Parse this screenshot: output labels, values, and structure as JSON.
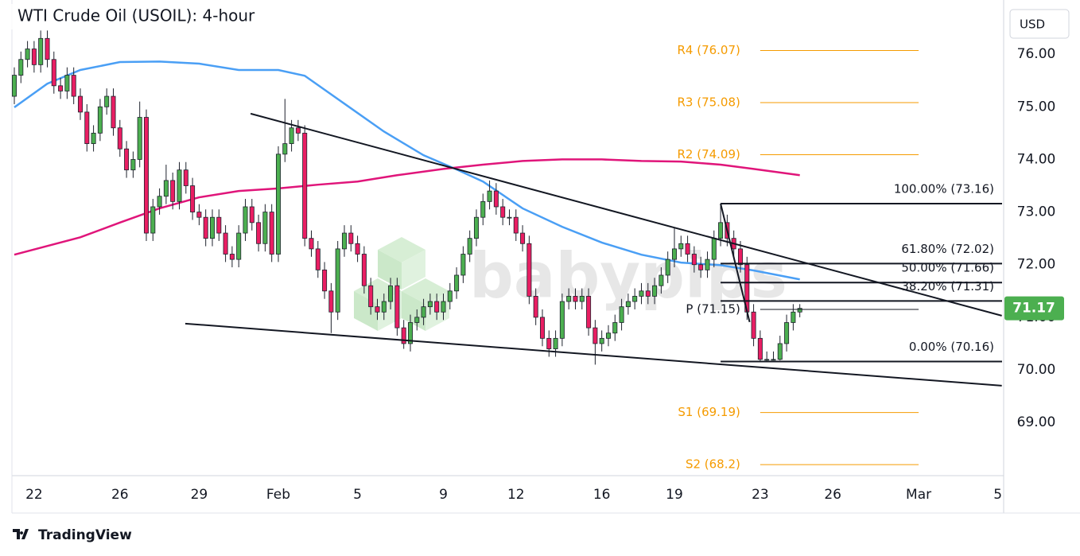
{
  "chart_data": {
    "type": "candlestick",
    "title": "WTI Crude Oil (USOIL): 4-hour",
    "currency": "USD",
    "watermark": "babypips",
    "footer": "TradingView",
    "xlim": [
      -0.36,
      149.64
    ],
    "ylim": [
      67.99,
      77.03
    ],
    "yticks": [
      {
        "value": 69,
        "label": "69.00"
      },
      {
        "value": 70,
        "label": "70.00"
      },
      {
        "value": 71,
        "label": "71.00"
      },
      {
        "value": 72,
        "label": "72.00"
      },
      {
        "value": 73,
        "label": "73.00"
      },
      {
        "value": 74,
        "label": "74.00"
      },
      {
        "value": 75,
        "label": "75.00"
      },
      {
        "value": 76,
        "label": "76.00"
      }
    ],
    "xticks": [
      {
        "value": 3,
        "label": "22"
      },
      {
        "value": 16,
        "label": "26"
      },
      {
        "value": 28,
        "label": "29"
      },
      {
        "value": 40,
        "label": "Feb"
      },
      {
        "value": 52,
        "label": "5"
      },
      {
        "value": 65,
        "label": "9"
      },
      {
        "value": 76,
        "label": "12"
      },
      {
        "value": 89,
        "label": "16"
      },
      {
        "value": 100,
        "label": "19"
      },
      {
        "value": 113,
        "label": "23"
      },
      {
        "value": 124,
        "label": "26"
      },
      {
        "value": 137,
        "label": "Mar"
      },
      {
        "value": 149,
        "label": "5"
      }
    ],
    "up_color": "#4caf50",
    "down_color": "#e91e63",
    "x": [
      0,
      1,
      2,
      3,
      4,
      5,
      6,
      7,
      8,
      9,
      10,
      11,
      12,
      13,
      14,
      15,
      16,
      17,
      18,
      19,
      20,
      21,
      22,
      23,
      24,
      25,
      26,
      27,
      28,
      29,
      30,
      31,
      32,
      33,
      34,
      35,
      36,
      37,
      38,
      39,
      40,
      41,
      42,
      43,
      44,
      45,
      46,
      47,
      48,
      49,
      50,
      51,
      52,
      53,
      54,
      55,
      56,
      57,
      58,
      59,
      60,
      61,
      62,
      63,
      64,
      65,
      66,
      67,
      68,
      69,
      70,
      71,
      72,
      73,
      74,
      75,
      76,
      77,
      78,
      79,
      80,
      81,
      82,
      83,
      84,
      85,
      86,
      87,
      88,
      89,
      90,
      91,
      92,
      93,
      94,
      95,
      96,
      97,
      98,
      99,
      100,
      101,
      102,
      103,
      104,
      105,
      106,
      107,
      108,
      109,
      110,
      111,
      112,
      113,
      114,
      115,
      116,
      117,
      118,
      119
    ],
    "open": [
      75.2,
      75.6,
      75.9,
      76.1,
      75.8,
      76.3,
      75.9,
      75.4,
      75.3,
      75.6,
      75.2,
      74.9,
      74.3,
      74.5,
      75.0,
      75.2,
      74.6,
      74.2,
      73.8,
      74.0,
      74.8,
      72.6,
      73.1,
      73.3,
      73.6,
      73.2,
      73.8,
      73.5,
      73.0,
      72.9,
      72.5,
      72.9,
      72.6,
      72.2,
      72.1,
      72.6,
      73.1,
      72.8,
      72.4,
      73.0,
      72.2,
      74.1,
      74.3,
      74.6,
      74.5,
      72.5,
      72.3,
      71.9,
      71.5,
      71.1,
      72.3,
      72.6,
      72.4,
      72.2,
      71.6,
      71.2,
      71.1,
      71.3,
      71.6,
      70.8,
      70.5,
      70.9,
      71.0,
      71.2,
      71.3,
      71.1,
      71.3,
      71.5,
      71.8,
      72.2,
      72.5,
      72.9,
      73.2,
      73.4,
      73.1,
      72.9,
      72.9,
      72.6,
      72.4,
      71.4,
      71.0,
      70.6,
      70.4,
      70.6,
      71.3,
      71.4,
      71.3,
      71.4,
      70.8,
      70.5,
      70.6,
      70.7,
      70.9,
      71.2,
      71.3,
      71.4,
      71.5,
      71.4,
      71.6,
      71.8,
      72.1,
      72.3,
      72.4,
      72.2,
      72.0,
      71.9,
      72.1,
      72.5,
      72.8,
      72.5,
      72.3,
      72.0,
      71.1,
      70.6,
      70.2,
      70.2,
      70.2,
      70.5,
      70.9,
      71.1
    ],
    "high": [
      75.75,
      76.05,
      76.25,
      76.25,
      76.45,
      76.45,
      76.05,
      75.55,
      75.75,
      75.75,
      75.35,
      75.05,
      74.65,
      75.15,
      75.35,
      75.35,
      74.75,
      74.35,
      74.15,
      75.1,
      74.95,
      73.25,
      73.45,
      73.9,
      73.75,
      73.95,
      73.95,
      73.65,
      73.15,
      73.05,
      73.05,
      73.05,
      72.75,
      72.35,
      72.75,
      73.25,
      73.25,
      72.95,
      73.15,
      73.15,
      74.25,
      75.15,
      74.75,
      74.75,
      74.65,
      72.65,
      72.45,
      72.05,
      71.65,
      72.45,
      72.75,
      72.75,
      72.55,
      72.35,
      71.75,
      71.35,
      71.45,
      71.75,
      71.75,
      70.95,
      71.05,
      71.15,
      71.35,
      71.45,
      71.45,
      71.45,
      71.65,
      71.95,
      72.35,
      72.65,
      73.05,
      73.35,
      73.6,
      73.55,
      73.25,
      73.05,
      73.05,
      72.75,
      72.55,
      71.55,
      71.15,
      70.75,
      70.75,
      71.45,
      71.55,
      71.55,
      71.55,
      71.55,
      70.95,
      70.75,
      70.85,
      71.05,
      71.35,
      71.45,
      71.55,
      71.65,
      71.65,
      71.75,
      71.95,
      72.25,
      72.7,
      72.55,
      72.55,
      72.35,
      72.15,
      72.25,
      72.65,
      73.16,
      72.95,
      72.65,
      72.45,
      72.15,
      71.25,
      70.75,
      70.35,
      70.35,
      70.65,
      71.05,
      71.25,
      71.25
    ],
    "low": [
      75.05,
      75.45,
      75.75,
      75.65,
      75.65,
      75.75,
      75.25,
      75.15,
      75.15,
      75.05,
      74.75,
      74.15,
      74.15,
      74.35,
      74.85,
      74.45,
      74.05,
      73.65,
      73.65,
      73.85,
      72.45,
      72.45,
      72.95,
      73.15,
      73.05,
      73.05,
      73.35,
      72.85,
      72.75,
      72.35,
      72.35,
      72.45,
      72.05,
      71.95,
      71.95,
      72.45,
      72.65,
      72.25,
      72.25,
      72.05,
      72.05,
      73.95,
      74.15,
      74.35,
      72.35,
      72.15,
      71.75,
      71.35,
      70.7,
      70.95,
      72.15,
      72.25,
      72.05,
      71.45,
      71.05,
      70.95,
      70.95,
      71.15,
      70.65,
      70.4,
      70.35,
      70.75,
      70.85,
      71.05,
      70.95,
      70.95,
      71.15,
      71.35,
      71.65,
      72.05,
      72.35,
      72.75,
      73.05,
      72.95,
      72.75,
      72.75,
      72.45,
      72.25,
      71.25,
      70.85,
      70.45,
      70.25,
      70.25,
      70.45,
      71.15,
      71.15,
      71.15,
      70.65,
      70.1,
      70.35,
      70.45,
      70.55,
      70.75,
      71.05,
      71.15,
      71.25,
      71.25,
      71.25,
      71.45,
      71.65,
      71.95,
      72.15,
      72.05,
      71.85,
      71.75,
      71.75,
      71.95,
      72.35,
      72.35,
      72.15,
      71.85,
      70.95,
      70.45,
      70.16,
      70.17,
      70.18,
      70.18,
      70.35,
      70.75,
      71.0
    ],
    "close": [
      75.6,
      75.9,
      76.1,
      75.8,
      76.3,
      75.9,
      75.4,
      75.3,
      75.6,
      75.2,
      74.9,
      74.3,
      74.5,
      75.0,
      75.2,
      74.6,
      74.2,
      73.8,
      74.0,
      74.8,
      72.6,
      73.1,
      73.3,
      73.6,
      73.2,
      73.8,
      73.5,
      73.0,
      72.9,
      72.5,
      72.9,
      72.6,
      72.2,
      72.1,
      72.6,
      73.1,
      72.8,
      72.4,
      73.0,
      72.2,
      74.1,
      74.3,
      74.6,
      74.5,
      72.5,
      72.3,
      71.9,
      71.5,
      71.1,
      72.3,
      72.6,
      72.4,
      72.2,
      71.6,
      71.2,
      71.1,
      71.3,
      71.6,
      70.8,
      70.5,
      70.9,
      71.0,
      71.2,
      71.3,
      71.1,
      71.3,
      71.5,
      71.8,
      72.2,
      72.5,
      72.9,
      73.2,
      73.4,
      73.1,
      72.9,
      72.9,
      72.6,
      72.4,
      71.4,
      71.0,
      70.6,
      70.4,
      70.6,
      71.3,
      71.4,
      71.3,
      71.4,
      70.8,
      70.5,
      70.6,
      70.7,
      70.9,
      71.2,
      71.3,
      71.4,
      71.5,
      71.4,
      71.6,
      71.8,
      72.1,
      72.3,
      72.4,
      72.2,
      72.0,
      71.9,
      72.1,
      72.5,
      72.8,
      72.5,
      72.3,
      72.0,
      71.1,
      70.6,
      70.2,
      70.2,
      70.2,
      70.5,
      70.9,
      71.1,
      71.17
    ],
    "moving_averages": [
      {
        "color": "#4a9ff5",
        "x": [
          0,
          5,
          10,
          16,
          22,
          28,
          34,
          40,
          44,
          50,
          56,
          62,
          67,
          71,
          77,
          83,
          89,
          95,
          101,
          107,
          112,
          119
        ],
        "values": [
          74.99,
          75.44,
          75.7,
          75.85,
          75.86,
          75.82,
          75.7,
          75.7,
          75.59,
          75.06,
          74.53,
          74.08,
          73.81,
          73.58,
          73.07,
          72.72,
          72.42,
          72.19,
          72.04,
          71.99,
          71.89,
          71.72
        ]
      },
      {
        "color": "#e0157a",
        "x": [
          0,
          10,
          16,
          22,
          28,
          34,
          40,
          46,
          52,
          58,
          65,
          71,
          77,
          83,
          89,
          95,
          101,
          107,
          112,
          119
        ],
        "values": [
          72.19,
          72.52,
          72.8,
          73.07,
          73.28,
          73.4,
          73.45,
          73.52,
          73.58,
          73.7,
          73.82,
          73.9,
          73.97,
          74.0,
          74.0,
          73.97,
          73.96,
          73.9,
          73.82,
          73.7
        ]
      }
    ],
    "trendlines": [
      {
        "x": [
          35.8,
          149.6
        ],
        "y": [
          74.87,
          71.03
        ]
      },
      {
        "x": [
          25.9,
          149.6
        ],
        "y": [
          70.88,
          69.7
        ]
      }
    ],
    "fib": {
      "x": [
        107,
        149.64
      ],
      "diagonal": {
        "x": [
          107,
          111.4
        ],
        "y": [
          73.16,
          70.91
        ]
      },
      "levels": [
        {
          "label": "100.00% (73.16)",
          "value": 73.16
        },
        {
          "label": "61.80% (72.02)",
          "value": 72.02
        },
        {
          "label": "50.00% (71.66)",
          "value": 71.66
        },
        {
          "label": "38.20% (71.31)",
          "value": 71.31
        },
        {
          "label": "0.00% (70.16)",
          "value": 70.16
        }
      ]
    },
    "pivots": {
      "x": [
        113,
        137
      ],
      "levels": [
        {
          "label": "R4 (76.07)",
          "value": 76.07,
          "color": "#f59b00"
        },
        {
          "label": "R3 (75.08)",
          "value": 75.08,
          "color": "#f59b00"
        },
        {
          "label": "R2 (74.09)",
          "value": 74.09,
          "color": "#f59b00"
        },
        {
          "label": "P (71.15)",
          "value": 71.15,
          "color": "#131722"
        },
        {
          "label": "S1 (69.19)",
          "value": 69.19,
          "color": "#f59b00"
        },
        {
          "label": "S2 (68.2)",
          "value": 68.2,
          "color": "#f59b00"
        }
      ]
    },
    "last_price": {
      "value": 71.17,
      "label": "71.17",
      "color": "#4caf50"
    }
  }
}
